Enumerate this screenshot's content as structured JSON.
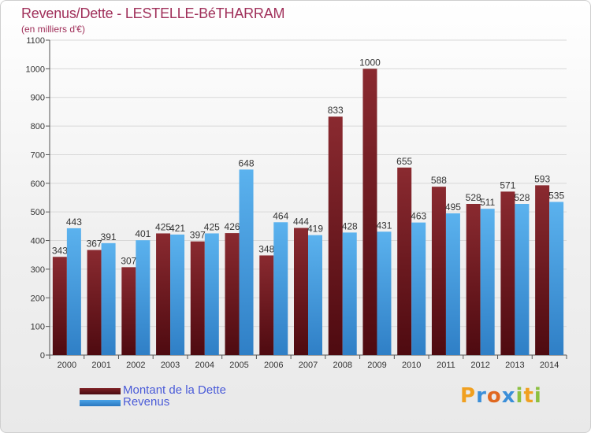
{
  "title": "Revenus/Dette - LESTELLE-BéTHARRAM",
  "subtitle": "(en milliers d'€)",
  "logo": {
    "text": "Proxiti",
    "letters": [
      {
        "ch": "P",
        "color": "#f0a020"
      },
      {
        "ch": "r",
        "color": "#3a8ed8"
      },
      {
        "ch": "o",
        "color": "#e06820"
      },
      {
        "ch": "x",
        "color": "#3a8ed8"
      },
      {
        "ch": "i",
        "color": "#8cc040"
      },
      {
        "ch": "t",
        "color": "#f0a020"
      },
      {
        "ch": "i",
        "color": "#8cc040"
      }
    ]
  },
  "colors": {
    "dette": "#7e2126",
    "revenus": "#4aa3e8",
    "axis_text": "#333333",
    "grid": "#d8d8d8"
  },
  "chart_data": {
    "type": "bar",
    "title": "Revenus/Dette - LESTELLE-BéTHARRAM",
    "subtitle": "(en milliers d'€)",
    "categories": [
      "2000",
      "2001",
      "2002",
      "2003",
      "2004",
      "2005",
      "2006",
      "2007",
      "2008",
      "2009",
      "2010",
      "2011",
      "2012",
      "2013",
      "2014"
    ],
    "series": [
      {
        "name": "Montant de la Dette",
        "values": [
          343,
          367,
          307,
          425,
          397,
          426,
          348,
          444,
          833,
          1000,
          655,
          588,
          528,
          571,
          593
        ]
      },
      {
        "name": "Revenus",
        "values": [
          443,
          391,
          401,
          421,
          425,
          648,
          464,
          419,
          428,
          431,
          463,
          495,
          511,
          528,
          535
        ]
      }
    ],
    "ylim": [
      0,
      1100
    ],
    "yticks": [
      0,
      100,
      200,
      300,
      400,
      500,
      600,
      700,
      800,
      900,
      1000,
      1100
    ],
    "grid": true,
    "legend_position": "bottom-left"
  }
}
